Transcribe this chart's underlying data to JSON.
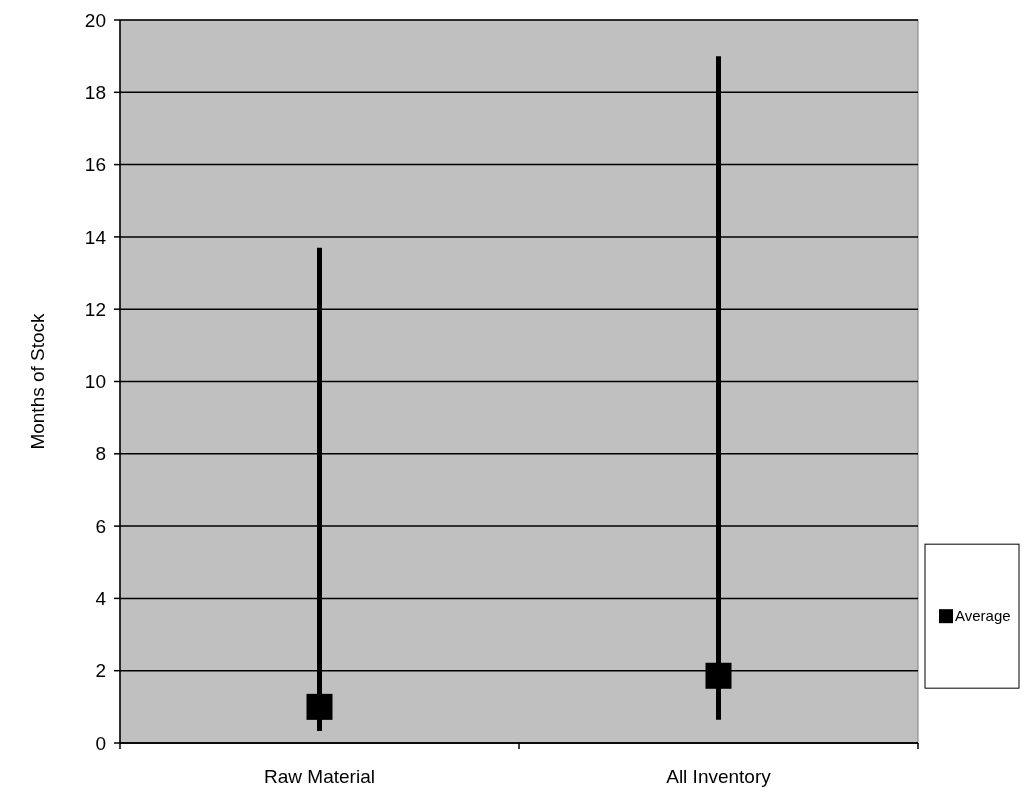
{
  "chart_data": {
    "type": "scatter",
    "ylabel": "Months of Stock",
    "categories": [
      "Raw Material",
      "All Inventory"
    ],
    "series": [
      {
        "name": "Average",
        "color": "#000000",
        "values": [
          1.0,
          1.86
        ],
        "errors": [
          [
            0.33,
            13.7
          ],
          [
            0.64,
            19.0
          ]
        ]
      }
    ],
    "ylim": [
      0,
      20
    ],
    "yticks": [
      0,
      2,
      4,
      6,
      8,
      10,
      12,
      14,
      16,
      18,
      20
    ],
    "grid": "y",
    "legend": "right",
    "marker": "square"
  }
}
